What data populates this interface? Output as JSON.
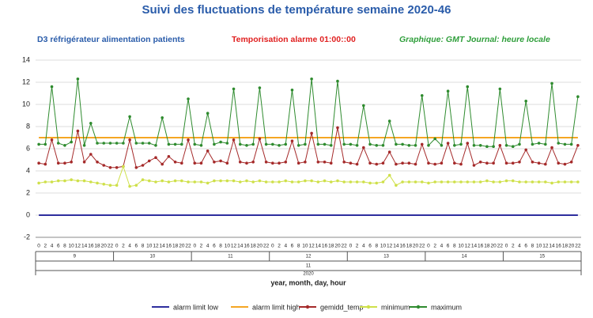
{
  "chart_data": {
    "type": "line",
    "title": "Suivi des fluctuations de température semaine 2020-46",
    "subtitles": [
      "D3 réfrigérateur alimentation patients",
      "Temporisation alarme 01:00::00",
      "Graphique: GMT Journal: heure locale"
    ],
    "subtitle_colors": [
      "#2a5caa",
      "#e02020",
      "#2e9e3a"
    ],
    "x_label": "year, month, day, hour",
    "categories": [
      "0",
      "2",
      "4",
      "6",
      "8",
      "10",
      "12",
      "14",
      "16",
      "18",
      "20",
      "22",
      "0",
      "2",
      "4",
      "6",
      "8",
      "10",
      "12",
      "14",
      "16",
      "18",
      "20",
      "22",
      "0",
      "2",
      "4",
      "6",
      "8",
      "10",
      "12",
      "14",
      "16",
      "18",
      "20",
      "22",
      "0",
      "2",
      "4",
      "6",
      "8",
      "10",
      "12",
      "14",
      "16",
      "18",
      "20",
      "22",
      "0",
      "2",
      "4",
      "6",
      "8",
      "10",
      "12",
      "14",
      "16",
      "18",
      "20",
      "22",
      "0",
      "2",
      "4",
      "6",
      "8",
      "10",
      "12",
      "14",
      "16",
      "18",
      "20",
      "22",
      "0",
      "2",
      "4",
      "6",
      "8",
      "10",
      "12",
      "14",
      "16",
      "18",
      "20",
      "22"
    ],
    "days": [
      "9",
      "10",
      "11",
      "12",
      "13",
      "14",
      "15"
    ],
    "month": "11",
    "year": "2020",
    "ylim": [
      -2,
      14
    ],
    "yticks": [
      -2,
      0,
      2,
      4,
      6,
      8,
      10,
      12,
      14
    ],
    "grid": true,
    "series": [
      {
        "name": "alarm limit low",
        "color": "#2e2e9e",
        "markers": false,
        "values": [
          0,
          0,
          0,
          0,
          0,
          0,
          0,
          0,
          0,
          0,
          0,
          0,
          0,
          0,
          0,
          0,
          0,
          0,
          0,
          0,
          0,
          0,
          0,
          0,
          0,
          0,
          0,
          0,
          0,
          0,
          0,
          0,
          0,
          0,
          0,
          0,
          0,
          0,
          0,
          0,
          0,
          0,
          0,
          0,
          0,
          0,
          0,
          0,
          0,
          0,
          0,
          0,
          0,
          0,
          0,
          0,
          0,
          0,
          0,
          0,
          0,
          0,
          0,
          0,
          0,
          0,
          0,
          0,
          0,
          0,
          0,
          0,
          0,
          0,
          0,
          0,
          0,
          0,
          0,
          0,
          0,
          0,
          0,
          0
        ]
      },
      {
        "name": "alarm limit high",
        "color": "#f5a623",
        "markers": false,
        "values": [
          7,
          7,
          7,
          7,
          7,
          7,
          7,
          7,
          7,
          7,
          7,
          7,
          7,
          7,
          7,
          7,
          7,
          7,
          7,
          7,
          7,
          7,
          7,
          7,
          7,
          7,
          7,
          7,
          7,
          7,
          7,
          7,
          7,
          7,
          7,
          7,
          7,
          7,
          7,
          7,
          7,
          7,
          7,
          7,
          7,
          7,
          7,
          7,
          7,
          7,
          7,
          7,
          7,
          7,
          7,
          7,
          7,
          7,
          7,
          7,
          7,
          7,
          7,
          7,
          7,
          7,
          7,
          7,
          7,
          7,
          7,
          7,
          7,
          7,
          7,
          7,
          7,
          7,
          7,
          7,
          7,
          7,
          7,
          7
        ]
      },
      {
        "name": "gemidd_temp",
        "color": "#a52a2a",
        "markers": true,
        "values": [
          4.7,
          4.6,
          6.8,
          4.7,
          4.7,
          4.8,
          7.6,
          4.8,
          5.5,
          4.8,
          4.5,
          4.3,
          4.3,
          4.4,
          6.8,
          4.3,
          4.5,
          4.9,
          5.2,
          4.6,
          5.3,
          4.8,
          4.7,
          6.8,
          4.7,
          4.7,
          5.8,
          4.8,
          4.9,
          4.7,
          6.8,
          4.8,
          4.7,
          4.8,
          6.9,
          4.8,
          4.7,
          4.7,
          4.8,
          6.7,
          4.7,
          4.8,
          7.4,
          4.8,
          4.8,
          4.7,
          7.9,
          4.8,
          4.7,
          4.6,
          6.1,
          4.7,
          4.6,
          4.7,
          5.7,
          4.6,
          4.7,
          4.7,
          4.6,
          6.4,
          4.7,
          4.6,
          4.7,
          6.5,
          4.7,
          4.6,
          6.5,
          4.5,
          4.8,
          4.7,
          4.7,
          6.3,
          4.7,
          4.7,
          4.8,
          5.9,
          4.8,
          4.7,
          4.6,
          6.1,
          4.7,
          4.6,
          4.8,
          6.3
        ]
      },
      {
        "name": "minimum",
        "color": "#cfe04a",
        "markers": true,
        "values": [
          2.9,
          3.0,
          3.0,
          3.1,
          3.1,
          3.2,
          3.1,
          3.1,
          3.0,
          2.9,
          2.8,
          2.7,
          2.7,
          4.4,
          2.6,
          2.7,
          3.2,
          3.1,
          3.0,
          3.1,
          3.0,
          3.1,
          3.1,
          3.0,
          3.0,
          3.0,
          2.9,
          3.1,
          3.1,
          3.1,
          3.1,
          3.0,
          3.1,
          3.0,
          3.1,
          3.0,
          3.0,
          3.0,
          3.1,
          3.0,
          3.0,
          3.1,
          3.1,
          3.0,
          3.1,
          3.0,
          3.1,
          3.0,
          3.0,
          3.0,
          3.0,
          2.9,
          2.9,
          3.0,
          3.6,
          2.7,
          3.0,
          3.0,
          3.0,
          3.0,
          2.9,
          3.0,
          3.0,
          3.0,
          3.0,
          3.0,
          3.0,
          3.0,
          3.0,
          3.1,
          3.0,
          3.0,
          3.1,
          3.1,
          3.0,
          3.0,
          3.0,
          3.0,
          3.0,
          2.9,
          3.0,
          3.0,
          3.0,
          3.0
        ]
      },
      {
        "name": "maximum",
        "color": "#2e8b2e",
        "markers": true,
        "values": [
          6.4,
          6.4,
          11.6,
          6.5,
          6.3,
          6.6,
          12.3,
          6.3,
          8.3,
          6.5,
          6.5,
          6.5,
          6.5,
          6.5,
          8.9,
          6.5,
          6.5,
          6.5,
          6.3,
          8.8,
          6.4,
          6.4,
          6.4,
          10.5,
          6.4,
          6.3,
          9.2,
          6.4,
          6.6,
          6.5,
          11.4,
          6.4,
          6.3,
          6.4,
          11.5,
          6.4,
          6.4,
          6.3,
          6.4,
          11.3,
          6.3,
          6.4,
          12.3,
          6.4,
          6.4,
          6.3,
          12.1,
          6.4,
          6.4,
          6.3,
          9.9,
          6.4,
          6.3,
          6.3,
          8.5,
          6.4,
          6.4,
          6.3,
          6.3,
          10.8,
          6.3,
          6.9,
          6.3,
          11.2,
          6.3,
          6.4,
          11.6,
          6.3,
          6.3,
          6.2,
          6.2,
          11.4,
          6.3,
          6.2,
          6.4,
          10.3,
          6.4,
          6.5,
          6.4,
          11.9,
          6.5,
          6.4,
          6.4,
          10.7
        ]
      }
    ]
  }
}
